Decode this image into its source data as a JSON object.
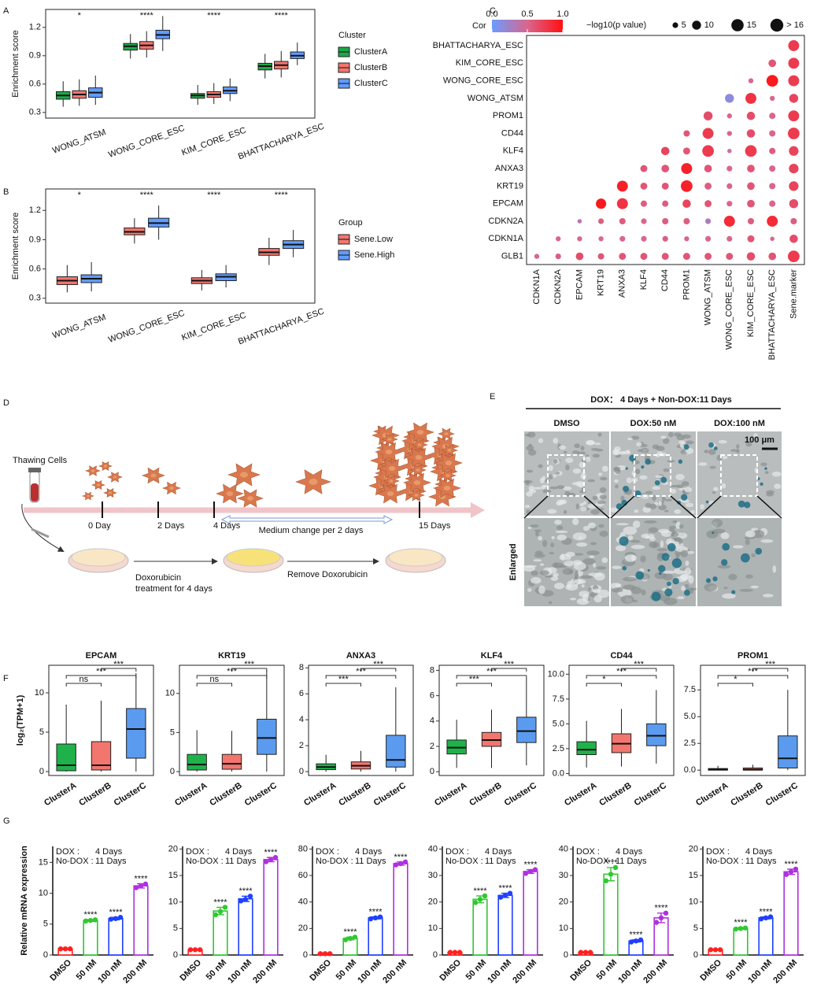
{
  "chart_data": [
    {
      "type": "box",
      "panel": "A",
      "ylabel": "Enrichment score",
      "legend_title": "Cluster",
      "categories": [
        "WONG_ATSM",
        "WONG_CORE_ESC",
        "KIM_CORE_ESC",
        "BHATTACHARYA_ESC"
      ],
      "annotations": [
        "*",
        "****",
        "****",
        "****"
      ],
      "series": [
        {
          "name": "ClusterA",
          "color": "#1fa74a",
          "boxes": [
            [
              0.36,
              0.44,
              0.48,
              0.52,
              0.63
            ],
            [
              0.87,
              0.96,
              1.0,
              1.03,
              1.13
            ],
            [
              0.38,
              0.45,
              0.48,
              0.5,
              0.59
            ],
            [
              0.66,
              0.75,
              0.79,
              0.82,
              0.92
            ]
          ]
        },
        {
          "name": "ClusterB",
          "color": "#f2766e",
          "boxes": [
            [
              0.37,
              0.45,
              0.49,
              0.53,
              0.65
            ],
            [
              0.88,
              0.97,
              1.01,
              1.05,
              1.16
            ],
            [
              0.39,
              0.46,
              0.49,
              0.52,
              0.61
            ],
            [
              0.67,
              0.76,
              0.8,
              0.84,
              0.95
            ]
          ]
        },
        {
          "name": "ClusterC",
          "color": "#619cff",
          "boxes": [
            [
              0.38,
              0.46,
              0.51,
              0.56,
              0.69
            ],
            [
              0.95,
              1.08,
              1.12,
              1.17,
              1.32
            ],
            [
              0.42,
              0.5,
              0.53,
              0.57,
              0.66
            ],
            [
              0.8,
              0.87,
              0.9,
              0.94,
              1.04
            ]
          ]
        }
      ],
      "ylim": [
        0.24,
        1.39
      ],
      "yticks": [
        0.3,
        0.6,
        0.9,
        1.2
      ]
    },
    {
      "type": "box",
      "panel": "B",
      "ylabel": "Enrichment score",
      "legend_title": "Group",
      "categories": [
        "WONG_ATSM",
        "WONG_CORE_ESC",
        "KIM_CORE_ESC",
        "BHATTACHARYA_ESC"
      ],
      "annotations": [
        "*",
        "****",
        "****",
        "****"
      ],
      "series": [
        {
          "name": "Sene.Low",
          "color": "#f2766e",
          "boxes": [
            [
              0.36,
              0.44,
              0.48,
              0.52,
              0.64
            ],
            [
              0.86,
              0.95,
              0.98,
              1.02,
              1.12
            ],
            [
              0.38,
              0.45,
              0.48,
              0.51,
              0.59
            ],
            [
              0.64,
              0.74,
              0.77,
              0.81,
              0.92
            ]
          ]
        },
        {
          "name": "Sene.High",
          "color": "#619cff",
          "boxes": [
            [
              0.37,
              0.46,
              0.5,
              0.54,
              0.67
            ],
            [
              0.9,
              1.03,
              1.07,
              1.12,
              1.25
            ],
            [
              0.41,
              0.48,
              0.52,
              0.55,
              0.64
            ],
            [
              0.72,
              0.81,
              0.85,
              0.89,
              1.0
            ]
          ]
        }
      ],
      "ylim": [
        0.25,
        1.42
      ],
      "yticks": [
        0.3,
        0.6,
        0.9,
        1.2
      ]
    },
    {
      "type": "dotmatrix",
      "panel": "C",
      "rows": [
        "BHATTACHARYA_ESC",
        "KIM_CORE_ESC",
        "WONG_CORE_ESC",
        "WONG_ATSM",
        "PROM1",
        "CD44",
        "KLF4",
        "ANXA3",
        "KRT19",
        "EPCAM",
        "CDKN2A",
        "CDKN1A",
        "GLB1"
      ],
      "columns": [
        "CDKN1A",
        "CDKN2A",
        "EPCAM",
        "KRT19",
        "ANXA3",
        "KLF4",
        "CD44",
        "PROM1",
        "WONG_ATSM",
        "WONG_CORE_ESC",
        "KIM_CORE_ESC",
        "BHATTACHARYA_ESC",
        "Sene.marker"
      ],
      "cor": [
        [
          0.75
        ],
        [
          0.6,
          0.75
        ],
        [
          0.5,
          0.95,
          0.75
        ],
        [
          0.15,
          0.8,
          0.5,
          0.7
        ],
        [
          0.65,
          0.5,
          0.65,
          0.5,
          0.75
        ],
        [
          0.6,
          0.75,
          0.5,
          0.65,
          0.5,
          0.75
        ],
        [
          0.7,
          0.6,
          0.75,
          0.4,
          0.75,
          0.55,
          0.7
        ],
        [
          0.6,
          0.6,
          0.9,
          0.6,
          0.5,
          0.6,
          0.5,
          0.7
        ],
        [
          0.9,
          0.6,
          0.6,
          0.9,
          0.55,
          0.5,
          0.6,
          0.5,
          0.7
        ],
        [
          0.95,
          0.8,
          0.55,
          0.55,
          0.7,
          0.6,
          0.5,
          0.6,
          0.5,
          0.65
        ],
        [
          0.35,
          0.55,
          0.55,
          0.5,
          0.55,
          0.55,
          0.3,
          0.85,
          0.55,
          0.85,
          0.55
        ],
        [
          0.5,
          0.5,
          0.5,
          0.5,
          0.5,
          0.55,
          0.5,
          0.5,
          0.5,
          0.6,
          0.5,
          0.65
        ],
        [
          0.5,
          0.55,
          0.65,
          0.6,
          0.6,
          0.6,
          0.6,
          0.6,
          0.6,
          0.6,
          0.65,
          0.6,
          0.75
        ]
      ],
      "size": [
        [
          13
        ],
        [
          8,
          13
        ],
        [
          4,
          14,
          13
        ],
        [
          10,
          13,
          4,
          10
        ],
        [
          10,
          4,
          9,
          6,
          13
        ],
        [
          6,
          13,
          4,
          9,
          6,
          14
        ],
        [
          9,
          7,
          14,
          3,
          14,
          6,
          11
        ],
        [
          7,
          8,
          13,
          8,
          5,
          8,
          6,
          11
        ],
        [
          13,
          7,
          7,
          14,
          7,
          5,
          8,
          6,
          11
        ],
        [
          12,
          13,
          6,
          6,
          9,
          7,
          5,
          8,
          6,
          10
        ],
        [
          3,
          5,
          6,
          5,
          6,
          6,
          5,
          13,
          6,
          13,
          6
        ],
        [
          4,
          4,
          4,
          5,
          5,
          5,
          4,
          5,
          5,
          7,
          3,
          9
        ],
        [
          4,
          5,
          8,
          6,
          7,
          7,
          7,
          7,
          7,
          7,
          9,
          8,
          14
        ]
      ],
      "colorbar_title": "Cor",
      "colorscale": [
        "#6b9bff",
        "#d9668e",
        "#ff1010"
      ],
      "colorbar_ticks": [
        {
          "value": 0,
          "label": "0.0"
        },
        0.5,
        {
          "value": 1,
          "label": "1.0"
        }
      ],
      "size_title": "−log10(p value)",
      "size_ticks": [
        5,
        10,
        15,
        {
          "value": 16,
          "label": "> 16"
        }
      ]
    },
    {
      "type": "box",
      "panel": "F",
      "title": "EPCAM",
      "ylabel": "log₂(TPM+1)",
      "categories": [
        "ClusterA",
        "ClusterB",
        "ClusterC"
      ],
      "colors": [
        "#1fb24a",
        "#f2766e",
        "#5b9bef"
      ],
      "boxes": [
        [
          0,
          0.1,
          0.8,
          3.5,
          8.5
        ],
        [
          0,
          0.2,
          0.8,
          3.8,
          9
        ],
        [
          0,
          1.7,
          5.4,
          8,
          12.5
        ]
      ],
      "brackets": [
        "ns",
        "***",
        "***"
      ],
      "ylim": [
        -0.5,
        13.5
      ],
      "yticks": [
        0,
        5,
        10
      ]
    },
    {
      "type": "box",
      "title": "KRT19",
      "categories": [
        "ClusterA",
        "ClusterB",
        "ClusterC"
      ],
      "colors": [
        "#1fb24a",
        "#f2766e",
        "#5b9bef"
      ],
      "boxes": [
        [
          0,
          0.2,
          0.9,
          2.2,
          5.3
        ],
        [
          0,
          0.3,
          1,
          2.2,
          5.2
        ],
        [
          0,
          2.2,
          4.3,
          6.7,
          13
        ]
      ],
      "brackets": [
        "ns",
        "***",
        "***"
      ],
      "ylim": [
        -0.5,
        13.6
      ],
      "yticks": [
        0,
        5,
        10
      ]
    },
    {
      "type": "box",
      "title": "ANXA3",
      "categories": [
        "ClusterA",
        "ClusterB",
        "ClusterC"
      ],
      "colors": [
        "#1fb24a",
        "#f2766e",
        "#5b9bef"
      ],
      "boxes": [
        [
          0,
          0.15,
          0.35,
          0.6,
          1.3
        ],
        [
          0,
          0.2,
          0.45,
          0.75,
          1.6
        ],
        [
          0,
          0.35,
          0.9,
          2.8,
          6.5
        ]
      ],
      "brackets": [
        "***",
        "***",
        "***"
      ],
      "ylim": [
        -0.3,
        8.2
      ],
      "yticks": [
        0,
        2,
        4,
        6,
        8
      ]
    },
    {
      "type": "box",
      "title": "KLF4",
      "categories": [
        "ClusterA",
        "ClusterB",
        "ClusterC"
      ],
      "colors": [
        "#1fb24a",
        "#f2766e",
        "#5b9bef"
      ],
      "boxes": [
        [
          0.3,
          1.4,
          1.9,
          2.5,
          4.1
        ],
        [
          0.3,
          2,
          2.5,
          3.1,
          4.9
        ],
        [
          0.5,
          2.3,
          3.2,
          4.3,
          7.4
        ]
      ],
      "brackets": [
        "***",
        "***",
        "***"
      ],
      "ylim": [
        -0.3,
        8.4
      ],
      "yticks": [
        0,
        2,
        4,
        6,
        8
      ]
    },
    {
      "type": "box",
      "title": "CD44",
      "categories": [
        "ClusterA",
        "ClusterB",
        "ClusterC"
      ],
      "colors": [
        "#1fb24a",
        "#f2766e",
        "#5b9bef"
      ],
      "boxes": [
        [
          0.6,
          1.9,
          2.4,
          3.2,
          5.3
        ],
        [
          0.7,
          2.1,
          3,
          4,
          6.5
        ],
        [
          1,
          2.8,
          3.8,
          5,
          8.4
        ]
      ],
      "brackets": [
        "*",
        "***",
        "***"
      ],
      "ylim": [
        -0.2,
        10.9
      ],
      "yticks": [
        {
          "value": 0,
          "label": "0.0"
        },
        2.5,
        {
          "value": 5,
          "label": "5.0"
        },
        7.5,
        {
          "value": 10,
          "label": "10.0"
        }
      ]
    },
    {
      "type": "box",
      "title": "PROM1",
      "categories": [
        "ClusterA",
        "ClusterB",
        "ClusterC"
      ],
      "colors": [
        "#1fb24a",
        "#f2766e",
        "#5b9bef"
      ],
      "boxes": [
        [
          0,
          0,
          0.05,
          0.15,
          0.4
        ],
        [
          0,
          0,
          0.05,
          0.2,
          0.5
        ],
        [
          0,
          0.2,
          1.1,
          3.2,
          7.5
        ]
      ],
      "brackets": [
        "*",
        "***",
        "***"
      ],
      "ylim": [
        -0.5,
        9.8
      ],
      "yticks": [
        {
          "value": 0,
          "label": "0.0"
        },
        2.5,
        {
          "value": 5,
          "label": "5.0"
        },
        7.5
      ]
    },
    {
      "type": "bar",
      "panel": "G",
      "ylabel": "Relative mRNA expression",
      "notes": [
        [
          "DOX :",
          "4 Days"
        ],
        [
          "No-DOX :",
          "11 Days"
        ]
      ],
      "categories": [
        "DMSO",
        "50 nM",
        "100 nM",
        "200 nM"
      ],
      "colors": [
        "#ff2020",
        "#30c830",
        "#2040ff",
        "#b030e0"
      ],
      "values": [
        1,
        5.6,
        5.9,
        11.2
      ],
      "errors": [
        0.1,
        0.15,
        0.2,
        0.35
      ],
      "points": [
        [
          1,
          1,
          1
        ],
        [
          5.5,
          5.6,
          5.7
        ],
        [
          5.8,
          5.9,
          6.1
        ],
        [
          10.9,
          11.2,
          11.5
        ]
      ],
      "annotations": [
        null,
        "****",
        "****",
        "****"
      ],
      "ylim": [
        0,
        17.6
      ],
      "yticks": [
        0,
        5,
        10,
        15
      ]
    },
    {
      "type": "bar",
      "notes": [
        [
          "DOX :",
          "4 Days"
        ],
        [
          "No-DOX :",
          "11 Days"
        ]
      ],
      "categories": [
        "DMSO",
        "50 nM",
        "100 nM",
        "200 nM"
      ],
      "colors": [
        "#ff2020",
        "#30c830",
        "#2040ff",
        "#b030e0"
      ],
      "values": [
        1,
        8.3,
        10.6,
        18
      ],
      "errors": [
        0.1,
        0.7,
        0.5,
        0.4
      ],
      "points": [
        [
          1,
          1,
          1
        ],
        [
          7.6,
          8.2,
          9
        ],
        [
          10.2,
          10.5,
          11.1
        ],
        [
          17.6,
          18,
          18.4
        ]
      ],
      "annotations": [
        null,
        "****",
        "****",
        "****"
      ],
      "ylim": [
        0,
        20.5
      ],
      "yticks": [
        0,
        5,
        10,
        15,
        20
      ]
    },
    {
      "type": "bar",
      "notes": [
        [
          "DOX :",
          "4 Days"
        ],
        [
          "No-DOX :",
          "11 Days"
        ]
      ],
      "categories": [
        "DMSO",
        "50 nM",
        "100 nM",
        "200 nM"
      ],
      "colors": [
        "#ff2020",
        "#30c830",
        "#2040ff",
        "#b030e0"
      ],
      "values": [
        1,
        12.5,
        28,
        69
      ],
      "errors": [
        0.1,
        1,
        0.8,
        1.2
      ],
      "points": [
        [
          1,
          1,
          1
        ],
        [
          11.5,
          12.5,
          13.5
        ],
        [
          27.3,
          28,
          28.7
        ],
        [
          68,
          69,
          70.2
        ]
      ],
      "annotations": [
        null,
        "****",
        "****",
        "****"
      ],
      "ylim": [
        0,
        82
      ],
      "yticks": [
        0,
        20,
        40,
        60,
        80
      ]
    },
    {
      "type": "bar",
      "notes": [
        [
          "DOX :",
          "4 Days"
        ],
        [
          "No-DOX :",
          "11 Days"
        ]
      ],
      "categories": [
        "DMSO",
        "50 nM",
        "100 nM",
        "200 nM"
      ],
      "colors": [
        "#ff2020",
        "#30c830",
        "#2040ff",
        "#b030e0"
      ],
      "values": [
        1,
        21,
        22.5,
        31.5
      ],
      "errors": [
        0.1,
        1.3,
        0.8,
        0.7
      ],
      "points": [
        [
          1,
          1,
          1
        ],
        [
          19.8,
          21,
          22.3
        ],
        [
          21.8,
          22.5,
          23.3
        ],
        [
          30.8,
          31.5,
          32.2
        ]
      ],
      "annotations": [
        null,
        "****",
        "****",
        "****"
      ],
      "ylim": [
        0,
        41
      ],
      "yticks": [
        0,
        10,
        20,
        30,
        40
      ]
    },
    {
      "type": "bar",
      "notes": [
        [
          "DOX :",
          "4 Days"
        ],
        [
          "No-DOX :",
          "11 Days"
        ]
      ],
      "categories": [
        "DMSO",
        "50 nM",
        "100 nM",
        "200 nM"
      ],
      "colors": [
        "#ff2020",
        "#30c830",
        "#2040ff",
        "#b030e0"
      ],
      "values": [
        1,
        30.5,
        5.3,
        14
      ],
      "errors": [
        0.1,
        2.5,
        0.4,
        1.8
      ],
      "points": [
        [
          1,
          1,
          1
        ],
        [
          28,
          30.5,
          33
        ],
        [
          4.9,
          5.3,
          5.7
        ],
        [
          12.3,
          14,
          15.8
        ]
      ],
      "annotations": [
        null,
        "****",
        "****",
        "****"
      ],
      "ylim": [
        0,
        41
      ],
      "yticks": [
        0,
        10,
        20,
        30,
        40
      ]
    },
    {
      "type": "bar",
      "notes": [
        [
          "DOX :",
          "4 Days"
        ],
        [
          "No-DOX :",
          "11 Days"
        ]
      ],
      "categories": [
        "DMSO",
        "50 nM",
        "100 nM",
        "200 nM"
      ],
      "colors": [
        "#ff2020",
        "#30c830",
        "#2040ff",
        "#b030e0"
      ],
      "values": [
        1,
        5,
        7,
        15.7
      ],
      "errors": [
        0.05,
        0.15,
        0.2,
        0.5
      ],
      "points": [
        [
          1,
          1,
          1
        ],
        [
          4.9,
          5,
          5.1
        ],
        [
          6.8,
          7,
          7.2
        ],
        [
          15.2,
          15.7,
          16.2
        ]
      ],
      "annotations": [
        null,
        "****",
        "****",
        "****"
      ],
      "ylim": [
        0,
        20.5
      ],
      "yticks": [
        0,
        5,
        10,
        15,
        20
      ]
    }
  ],
  "diagram": {
    "panel": "D",
    "source": "Thawing Cells",
    "days": [
      "0 Day",
      "2 Days",
      "4 Days",
      "15 Days"
    ],
    "medium": "Medium change per 2 days",
    "treatment": [
      "Doxorubicin",
      "treatment for 4 days"
    ],
    "remove": "Remove Doxorubicin"
  },
  "images": {
    "panel": "E",
    "header": "DOX： 4 Days  + Non-DOX:11 Days",
    "columns": [
      "DMSO",
      "DOX:50 nM",
      "DOX:100 nM"
    ],
    "scale": "100 μm",
    "row_label": "Enlarged"
  }
}
